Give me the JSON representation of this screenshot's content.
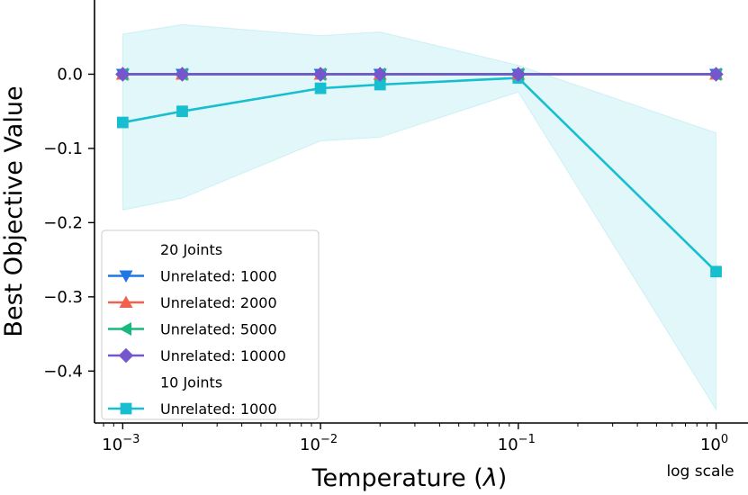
{
  "chart_data": {
    "type": "line",
    "title": "",
    "xlabel": "Temperature (λ)",
    "ylabel": "Best Objective Value",
    "xscale": "log",
    "scale_note": "log scale",
    "xlim": [
      0.00072,
      1.45
    ],
    "ylim": [
      -0.47,
      0.1
    ],
    "xticks": [
      {
        "value": 0.001,
        "base": "10",
        "exp": "−3"
      },
      {
        "value": 0.01,
        "base": "10",
        "exp": "−2"
      },
      {
        "value": 0.1,
        "base": "10",
        "exp": "−1"
      },
      {
        "value": 1,
        "base": "10",
        "exp": "0"
      }
    ],
    "yticks": [
      {
        "value": 0.0,
        "label": "0.0"
      },
      {
        "value": -0.1,
        "label": "−0.1"
      },
      {
        "value": -0.2,
        "label": "−0.2"
      },
      {
        "value": -0.3,
        "label": "−0.3"
      },
      {
        "value": -0.4,
        "label": "−0.4"
      }
    ],
    "x": [
      0.001,
      0.002,
      0.01,
      0.02,
      0.1,
      1
    ],
    "legend_position": "lower-left",
    "legend_groups": [
      {
        "title": "20 Joints",
        "series_names": [
          "Unrelated: 1000",
          "Unrelated: 2000",
          "Unrelated: 5000",
          "Unrelated: 10000"
        ]
      },
      {
        "title": "10 Joints",
        "series_names": [
          "Unrelated: 1000"
        ]
      }
    ],
    "series": [
      {
        "name": "Unrelated: 1000",
        "group": "20 Joints",
        "color": "#1f77e4",
        "marker": "triangle-down",
        "values": [
          0,
          0,
          0,
          0,
          0,
          0
        ]
      },
      {
        "name": "Unrelated: 2000",
        "group": "20 Joints",
        "color": "#f0624d",
        "marker": "triangle-up",
        "values": [
          0,
          0,
          0,
          0,
          0,
          0
        ]
      },
      {
        "name": "Unrelated: 5000",
        "group": "20 Joints",
        "color": "#1ab87e",
        "marker": "triangle-left",
        "values": [
          0,
          0,
          0,
          0,
          0,
          0
        ]
      },
      {
        "name": "Unrelated: 10000",
        "group": "20 Joints",
        "color": "#7556cc",
        "marker": "diamond",
        "values": [
          0,
          0,
          0,
          0,
          0,
          0
        ]
      },
      {
        "name": "Unrelated: 1000",
        "group": "10 Joints",
        "color": "#17becf",
        "marker": "square",
        "values": [
          -0.065,
          -0.05,
          -0.019,
          -0.014,
          -0.005,
          -0.266
        ],
        "band_upper": [
          0.054,
          0.067,
          0.052,
          0.057,
          0.012,
          -0.079
        ],
        "band_lower": [
          -0.183,
          -0.167,
          -0.09,
          -0.085,
          -0.024,
          -0.452
        ],
        "band_color": "#17becf"
      }
    ]
  }
}
